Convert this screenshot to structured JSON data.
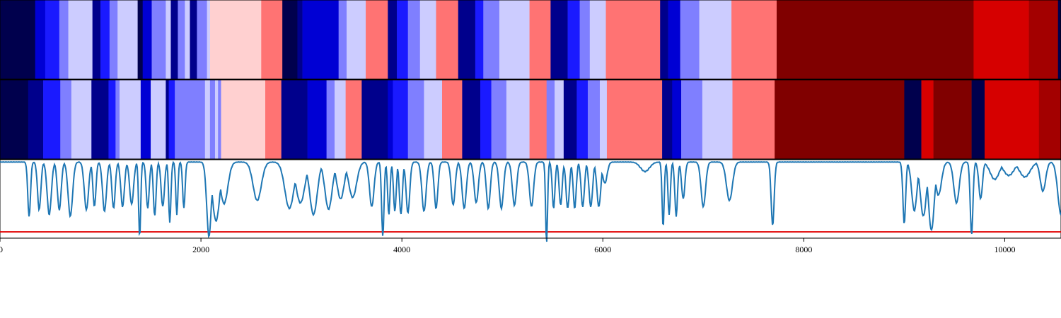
{
  "chart_data": {
    "type": "heatmap",
    "title": "",
    "xlabel": "",
    "ylabel": "",
    "xlim": [
      0,
      10560
    ],
    "x_ticks": [
      "0",
      "2000",
      "4000",
      "6000",
      "8000",
      "10000"
    ],
    "x_tick_values": [
      0,
      2000,
      4000,
      6000,
      8000,
      10000
    ],
    "colors": {
      "navy": "#00004d",
      "dark_blue": "#00008c",
      "blue": "#0000d4",
      "bright_blue": "#1a1aff",
      "mid_blue": "#7f7fff",
      "pale_blue": "#ccccff",
      "pale_pink": "#ffd0d0",
      "salmon": "#ff7373",
      "red": "#d60000",
      "dark_red": "#a30000",
      "maroon": "#800000",
      "line": "#1f77b4",
      "threshold": "#e00000"
    },
    "rows": [
      {
        "segments": [
          [
            0,
            350,
            "navy"
          ],
          [
            350,
            450,
            "blue"
          ],
          [
            450,
            590,
            "bright_blue"
          ],
          [
            590,
            680,
            "mid_blue"
          ],
          [
            680,
            920,
            "pale_blue"
          ],
          [
            920,
            1000,
            "dark_blue"
          ],
          [
            1000,
            1090,
            "bright_blue"
          ],
          [
            1090,
            1170,
            "mid_blue"
          ],
          [
            1170,
            1370,
            "pale_blue"
          ],
          [
            1370,
            1420,
            "navy"
          ],
          [
            1420,
            1510,
            "blue"
          ],
          [
            1510,
            1650,
            "mid_blue"
          ],
          [
            1650,
            1700,
            "pale_blue"
          ],
          [
            1700,
            1770,
            "dark_blue"
          ],
          [
            1770,
            1840,
            "mid_blue"
          ],
          [
            1840,
            1890,
            "pale_blue"
          ],
          [
            1890,
            1960,
            "dark_blue"
          ],
          [
            1960,
            2060,
            "mid_blue"
          ],
          [
            2060,
            2090,
            "pale_blue"
          ],
          [
            2090,
            2600,
            "pale_pink"
          ],
          [
            2600,
            2810,
            "salmon"
          ],
          [
            2810,
            2960,
            "navy"
          ],
          [
            2960,
            3010,
            "dark_blue"
          ],
          [
            3010,
            3370,
            "blue"
          ],
          [
            3370,
            3450,
            "mid_blue"
          ],
          [
            3450,
            3640,
            "pale_blue"
          ],
          [
            3640,
            3860,
            "salmon"
          ],
          [
            3860,
            3950,
            "dark_blue"
          ],
          [
            3950,
            4060,
            "bright_blue"
          ],
          [
            4060,
            4180,
            "mid_blue"
          ],
          [
            4180,
            4340,
            "pale_blue"
          ],
          [
            4340,
            4560,
            "salmon"
          ],
          [
            4560,
            4730,
            "dark_blue"
          ],
          [
            4730,
            4810,
            "bright_blue"
          ],
          [
            4810,
            4970,
            "mid_blue"
          ],
          [
            4970,
            5270,
            "pale_blue"
          ],
          [
            5270,
            5480,
            "salmon"
          ],
          [
            5480,
            5650,
            "dark_blue"
          ],
          [
            5650,
            5770,
            "bright_blue"
          ],
          [
            5770,
            5870,
            "mid_blue"
          ],
          [
            5870,
            6030,
            "pale_blue"
          ],
          [
            6030,
            6570,
            "salmon"
          ],
          [
            6570,
            6650,
            "dark_blue"
          ],
          [
            6650,
            6770,
            "blue"
          ],
          [
            6770,
            6960,
            "mid_blue"
          ],
          [
            6960,
            7280,
            "pale_blue"
          ],
          [
            7280,
            7730,
            "salmon"
          ],
          [
            7730,
            9690,
            "maroon"
          ],
          [
            9690,
            10240,
            "red"
          ],
          [
            10240,
            10530,
            "dark_red"
          ],
          [
            10530,
            10560,
            "navy"
          ]
        ]
      },
      {
        "segments": [
          [
            0,
            280,
            "navy"
          ],
          [
            280,
            430,
            "dark_blue"
          ],
          [
            430,
            600,
            "bright_blue"
          ],
          [
            600,
            710,
            "mid_blue"
          ],
          [
            710,
            910,
            "pale_blue"
          ],
          [
            910,
            1080,
            "dark_blue"
          ],
          [
            1080,
            1150,
            "bright_blue"
          ],
          [
            1150,
            1190,
            "mid_blue"
          ],
          [
            1190,
            1400,
            "pale_blue"
          ],
          [
            1400,
            1500,
            "blue"
          ],
          [
            1500,
            1650,
            "pale_blue"
          ],
          [
            1650,
            1680,
            "dark_blue"
          ],
          [
            1680,
            1740,
            "bright_blue"
          ],
          [
            1740,
            2040,
            "mid_blue"
          ],
          [
            2040,
            2090,
            "pale_blue"
          ],
          [
            2090,
            2140,
            "mid_blue"
          ],
          [
            2140,
            2170,
            "pale_blue"
          ],
          [
            2170,
            2200,
            "mid_blue"
          ],
          [
            2200,
            2640,
            "pale_pink"
          ],
          [
            2640,
            2800,
            "salmon"
          ],
          [
            2800,
            3060,
            "dark_blue"
          ],
          [
            3060,
            3250,
            "blue"
          ],
          [
            3250,
            3330,
            "mid_blue"
          ],
          [
            3330,
            3440,
            "pale_blue"
          ],
          [
            3440,
            3600,
            "salmon"
          ],
          [
            3600,
            3860,
            "dark_blue"
          ],
          [
            3860,
            3910,
            "blue"
          ],
          [
            3910,
            4060,
            "bright_blue"
          ],
          [
            4060,
            4220,
            "mid_blue"
          ],
          [
            4220,
            4400,
            "pale_blue"
          ],
          [
            4400,
            4600,
            "salmon"
          ],
          [
            4600,
            4780,
            "dark_blue"
          ],
          [
            4780,
            4890,
            "bright_blue"
          ],
          [
            4890,
            5040,
            "mid_blue"
          ],
          [
            5040,
            5270,
            "pale_blue"
          ],
          [
            5270,
            5440,
            "salmon"
          ],
          [
            5440,
            5520,
            "mid_blue"
          ],
          [
            5520,
            5610,
            "pale_blue"
          ],
          [
            5610,
            5740,
            "dark_blue"
          ],
          [
            5740,
            5850,
            "bright_blue"
          ],
          [
            5850,
            5970,
            "mid_blue"
          ],
          [
            5970,
            6040,
            "pale_blue"
          ],
          [
            6040,
            6590,
            "salmon"
          ],
          [
            6590,
            6690,
            "dark_blue"
          ],
          [
            6690,
            6780,
            "blue"
          ],
          [
            6780,
            6990,
            "mid_blue"
          ],
          [
            6990,
            7290,
            "pale_blue"
          ],
          [
            7290,
            7710,
            "salmon"
          ],
          [
            7710,
            9000,
            "maroon"
          ],
          [
            9000,
            9170,
            "navy"
          ],
          [
            9170,
            9290,
            "red"
          ],
          [
            9290,
            9670,
            "maroon"
          ],
          [
            9670,
            9800,
            "navy"
          ],
          [
            9800,
            10340,
            "red"
          ],
          [
            10340,
            10560,
            "dark_red"
          ]
        ]
      }
    ],
    "line": {
      "y_range": [
        0,
        1
      ],
      "threshold": 0.08,
      "baseline": 0.97,
      "dips": [
        [
          290,
          0.27,
          18
        ],
        [
          390,
          0.36,
          22
        ],
        [
          490,
          0.3,
          28
        ],
        [
          590,
          0.36,
          25
        ],
        [
          700,
          0.28,
          30
        ],
        [
          860,
          0.36,
          28
        ],
        [
          940,
          0.4,
          20
        ],
        [
          1040,
          0.34,
          26
        ],
        [
          1130,
          0.38,
          22
        ],
        [
          1220,
          0.4,
          24
        ],
        [
          1310,
          0.43,
          26
        ],
        [
          1390,
          0.01,
          14
        ],
        [
          1470,
          0.38,
          20
        ],
        [
          1540,
          0.28,
          18
        ],
        [
          1620,
          0.4,
          22
        ],
        [
          1690,
          0.2,
          15
        ],
        [
          1760,
          0.3,
          14
        ],
        [
          1830,
          0.38,
          16
        ],
        [
          2080,
          0.02,
          30
        ],
        [
          2150,
          0.22,
          48
        ],
        [
          2230,
          0.44,
          50
        ],
        [
          2560,
          0.48,
          55
        ],
        [
          2880,
          0.38,
          60
        ],
        [
          2990,
          0.45,
          58
        ],
        [
          3120,
          0.3,
          50
        ],
        [
          3270,
          0.37,
          48
        ],
        [
          3390,
          0.5,
          48
        ],
        [
          3510,
          0.52,
          52
        ],
        [
          3700,
          0.4,
          30
        ],
        [
          3810,
          0.02,
          16
        ],
        [
          3870,
          0.3,
          16
        ],
        [
          3930,
          0.34,
          18
        ],
        [
          3990,
          0.3,
          20
        ],
        [
          4060,
          0.32,
          24
        ],
        [
          4220,
          0.34,
          28
        ],
        [
          4340,
          0.38,
          24
        ],
        [
          4510,
          0.42,
          26
        ],
        [
          4620,
          0.38,
          28
        ],
        [
          4740,
          0.45,
          28
        ],
        [
          4860,
          0.38,
          26
        ],
        [
          4990,
          0.38,
          28
        ],
        [
          5120,
          0.42,
          28
        ],
        [
          5290,
          0.4,
          28
        ],
        [
          5440,
          -0.07,
          13
        ],
        [
          5510,
          0.38,
          18
        ],
        [
          5580,
          0.42,
          20
        ],
        [
          5650,
          0.38,
          22
        ],
        [
          5720,
          0.38,
          20
        ],
        [
          5800,
          0.4,
          22
        ],
        [
          5880,
          0.4,
          24
        ],
        [
          5960,
          0.4,
          26
        ],
        [
          6020,
          0.7,
          30
        ],
        [
          6420,
          0.85,
          60
        ],
        [
          6600,
          0.14,
          14
        ],
        [
          6660,
          0.3,
          16
        ],
        [
          6730,
          0.28,
          18
        ],
        [
          6800,
          0.5,
          22
        ],
        [
          7000,
          0.4,
          30
        ],
        [
          7260,
          0.48,
          40
        ],
        [
          7690,
          0.16,
          20
        ],
        [
          9000,
          0.18,
          18
        ],
        [
          9100,
          0.35,
          35
        ],
        [
          9190,
          0.28,
          40
        ],
        [
          9270,
          0.1,
          38
        ],
        [
          9340,
          0.55,
          40
        ],
        [
          9520,
          0.45,
          36
        ],
        [
          9670,
          0.04,
          18
        ],
        [
          9760,
          0.5,
          24
        ],
        [
          9900,
          0.75,
          60
        ],
        [
          10040,
          0.8,
          70
        ],
        [
          10200,
          0.78,
          70
        ],
        [
          10380,
          0.6,
          36
        ],
        [
          10560,
          0.3,
          42
        ]
      ]
    }
  }
}
